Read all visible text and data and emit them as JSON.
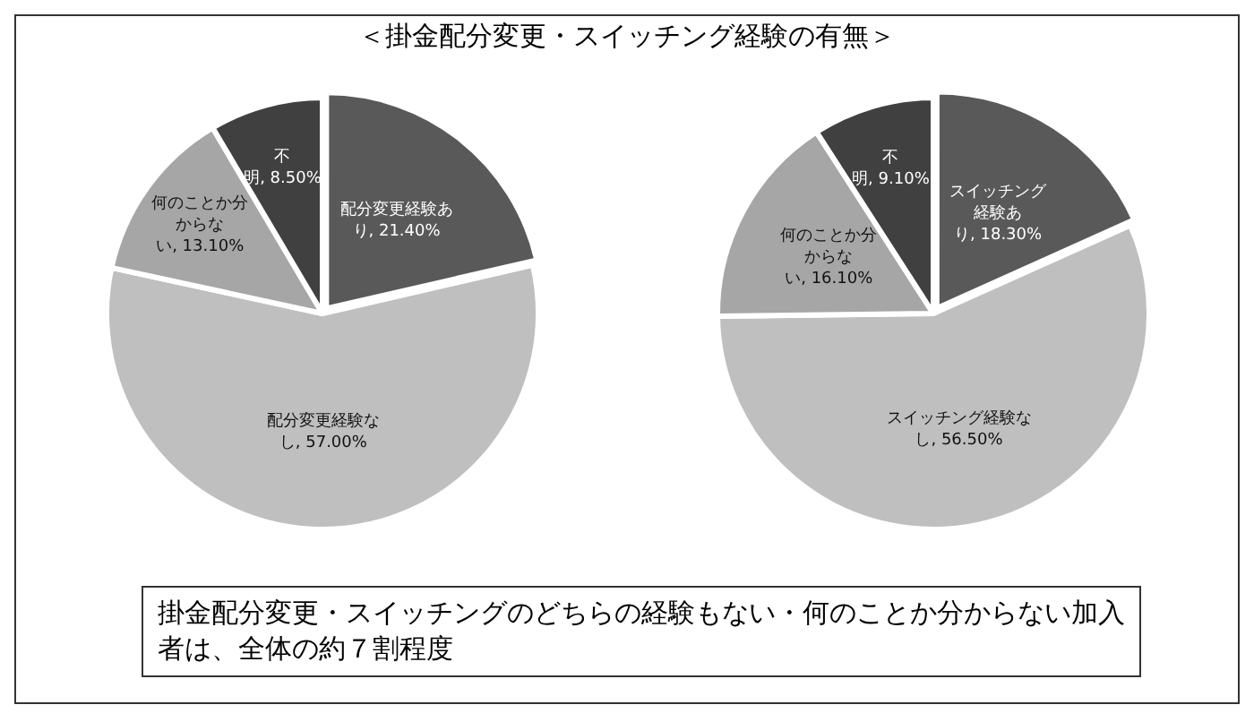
{
  "chart_data": [
    {
      "type": "pie",
      "title": "＜掛金配分変更・スイッチング経験の有無＞",
      "categories": [
        "配分変更経験あり",
        "配分変更経験なし",
        "何のことか分からない",
        "不明"
      ],
      "values": [
        21.4,
        57.0,
        13.1,
        8.5
      ],
      "value_labels": [
        "21.40%",
        "57.00%",
        "13.10%",
        "8.50%"
      ],
      "colors": [
        "#595959",
        "#bfbfbf",
        "#a6a6a6",
        "#404040"
      ],
      "legend": false,
      "annotations": [
        "掛金配分変更・スイッチングのどちらの経験もない・何のことか分からない加入者は、全体の約７割程度"
      ]
    },
    {
      "type": "pie",
      "categories": [
        "スイッチング経験あり",
        "スイッチング経験なし",
        "何のことか分からない",
        "不明"
      ],
      "values": [
        18.3,
        56.5,
        16.1,
        9.1
      ],
      "value_labels": [
        "18.30%",
        "56.50%",
        "16.10%",
        "9.10%"
      ],
      "colors": [
        "#595959",
        "#bfbfbf",
        "#a6a6a6",
        "#404040"
      ],
      "legend": false
    }
  ]
}
